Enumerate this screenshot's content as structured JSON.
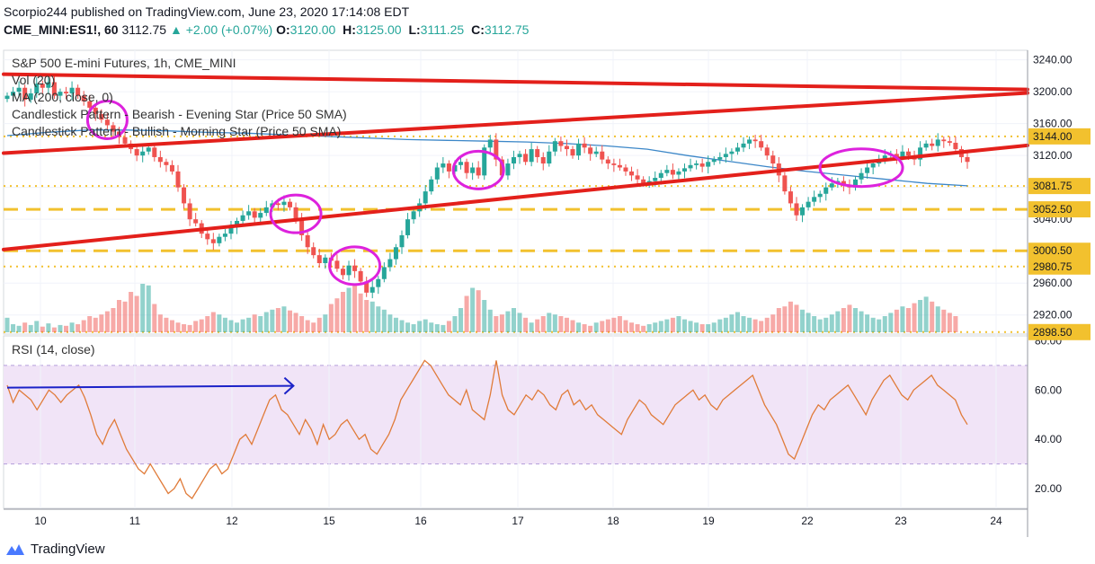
{
  "header": {
    "publisher": "Scorpio244 published on TradingView.com, June 23, 2020 17:14:08 EDT",
    "symbol": "CME_MINI:ES1!, 60",
    "last": "3112.75",
    "change": "▲ +2.00 (+0.07%)",
    "open_label": "O:",
    "open": "3120.00",
    "high_label": "H:",
    "high": "3125.00",
    "low_label": "L:",
    "low": "3111.25",
    "close_label": "C:",
    "close": "3112.75"
  },
  "legend": {
    "title": "S&P 500 E-mini Futures, 1h, CME_MINI",
    "vol": "Vol (20)",
    "ma": "MA (200, close, 0)",
    "pattern1": "Candlestick Pattern - Bearish - Evening Star (Price 50 SMA)",
    "pattern2": "Candlestick Pattern - Bullish - Morning Star (Price 50 SMA)",
    "rsi": "RSI (14, close)"
  },
  "footer": {
    "brand": "TradingView"
  },
  "colors": {
    "up": "#26a69a",
    "down": "#ef5350",
    "trend": "#e3201b",
    "level": "#f2c12e",
    "ma": "#3c87c8",
    "ellipse": "#dd22dd",
    "rsi": "#e07b39",
    "rsi_band": "#f1e4f7",
    "arrow": "#1b22c8"
  },
  "chart_data": [
    {
      "type": "candlestick",
      "title": "S&P 500 E-mini Futures, 1h, CME_MINI",
      "x_ticks": [
        "10",
        "11",
        "12",
        "15",
        "16",
        "17",
        "18",
        "19",
        "22",
        "23",
        "24"
      ],
      "y_ticks": [
        "3240.00",
        "3200.00",
        "3160.00",
        "3120.00",
        "3080.00",
        "3040.00",
        "3000.00",
        "2960.00",
        "2920.00"
      ],
      "ylim": [
        2896,
        3252
      ],
      "price_labels": [
        {
          "value": 3144.0,
          "label": "3144.00",
          "style": "dotted"
        },
        {
          "value": 3081.75,
          "label": "3081.75",
          "style": "dotted"
        },
        {
          "value": 3052.5,
          "label": "3052.50",
          "style": "dashed"
        },
        {
          "value": 3000.5,
          "label": "3000.50",
          "style": "dashed"
        },
        {
          "value": 2980.75,
          "label": "2980.75",
          "style": "dotted"
        },
        {
          "value": 2898.5,
          "label": "2898.50",
          "style": "dotted"
        }
      ],
      "closes": [
        3195,
        3200,
        3205,
        3190,
        3198,
        3210,
        3205,
        3212,
        3195,
        3200,
        3198,
        3205,
        3195,
        3188,
        3180,
        3172,
        3165,
        3158,
        3150,
        3143,
        3135,
        3128,
        3120,
        3125,
        3130,
        3118,
        3112,
        3108,
        3100,
        3080,
        3060,
        3040,
        3035,
        3022,
        3015,
        3010,
        3018,
        3022,
        3030,
        3038,
        3045,
        3050,
        3042,
        3048,
        3055,
        3060,
        3058,
        3062,
        3055,
        3040,
        3020,
        3005,
        2995,
        2985,
        2992,
        2988,
        2978,
        2970,
        2982,
        2975,
        2962,
        2948,
        2955,
        2965,
        2980,
        2990,
        3005,
        3020,
        3040,
        3050,
        3060,
        3075,
        3090,
        3105,
        3110,
        3100,
        3108,
        3112,
        3098,
        3105,
        3095,
        3130,
        3140,
        3115,
        3095,
        3110,
        3118,
        3122,
        3112,
        3128,
        3118,
        3110,
        3125,
        3138,
        3132,
        3128,
        3120,
        3135,
        3130,
        3122,
        3125,
        3115,
        3110,
        3108,
        3105,
        3100,
        3095,
        3090,
        3085,
        3088,
        3092,
        3098,
        3102,
        3096,
        3100,
        3104,
        3108,
        3110,
        3106,
        3112,
        3115,
        3118,
        3122,
        3125,
        3130,
        3135,
        3140,
        3138,
        3130,
        3120,
        3110,
        3095,
        3075,
        3060,
        3045,
        3055,
        3062,
        3068,
        3072,
        3080,
        3085,
        3088,
        3082,
        3080,
        3090,
        3098,
        3105,
        3110,
        3115,
        3120,
        3122,
        3118,
        3125,
        3120,
        3115,
        3130,
        3135,
        3132,
        3140,
        3138,
        3136,
        3128,
        3118,
        3112
      ],
      "ma200": [
        3145,
        3149,
        3152,
        3152,
        3151,
        3149,
        3148,
        3146,
        3144,
        3142,
        3140,
        3139,
        3138,
        3137,
        3135,
        3132,
        3128,
        3120,
        3113,
        3106,
        3100,
        3095,
        3090,
        3085,
        3082
      ],
      "trendlines": [
        {
          "from": [
            0,
            3222
          ],
          "to": [
            163,
            3204
          ]
        },
        {
          "from": [
            0,
            3123
          ],
          "to": [
            163,
            3194
          ]
        },
        {
          "from": [
            0,
            3002
          ],
          "to": [
            163,
            3125
          ]
        }
      ],
      "highlights": [
        17,
        49,
        59,
        80,
        145
      ],
      "volume": [
        18,
        10,
        8,
        12,
        9,
        14,
        7,
        11,
        6,
        9,
        8,
        12,
        10,
        15,
        20,
        18,
        22,
        26,
        30,
        40,
        38,
        50,
        45,
        60,
        58,
        35,
        22,
        18,
        15,
        12,
        10,
        9,
        14,
        16,
        20,
        25,
        22,
        18,
        15,
        12,
        16,
        18,
        22,
        20,
        25,
        28,
        30,
        32,
        27,
        24,
        20,
        15,
        12,
        18,
        22,
        35,
        42,
        50,
        55,
        60,
        48,
        40,
        38,
        32,
        28,
        22,
        18,
        15,
        12,
        10,
        14,
        16,
        12,
        10,
        9,
        14,
        20,
        30,
        45,
        55,
        52,
        40,
        28,
        20,
        22,
        26,
        30,
        24,
        18,
        12,
        16,
        20,
        24,
        22,
        20,
        18,
        15,
        12,
        10,
        8,
        12,
        14,
        16,
        18,
        20,
        15,
        12,
        10,
        8,
        10,
        12,
        14,
        16,
        18,
        20,
        16,
        14,
        12,
        10,
        10,
        12,
        16,
        18,
        22,
        25,
        20,
        18,
        16,
        14,
        18,
        22,
        30,
        32,
        38,
        34,
        28,
        24,
        20,
        16,
        18,
        22,
        26,
        30,
        34,
        30,
        26,
        22,
        18,
        16,
        20,
        24,
        28,
        32,
        30,
        36,
        40,
        44,
        38,
        32,
        28,
        24,
        20
      ]
    },
    {
      "type": "line",
      "title": "RSI (14, close)",
      "y_ticks": [
        "80.00",
        "60.00",
        "40.00",
        "20.00"
      ],
      "ylim": [
        12,
        82
      ],
      "band": [
        30,
        70
      ],
      "values": [
        62,
        55,
        60,
        58,
        56,
        52,
        56,
        60,
        58,
        55,
        58,
        60,
        62,
        57,
        50,
        42,
        38,
        44,
        48,
        42,
        36,
        32,
        28,
        26,
        30,
        26,
        22,
        18,
        20,
        24,
        18,
        16,
        20,
        24,
        28,
        30,
        26,
        28,
        34,
        40,
        42,
        38,
        44,
        50,
        56,
        58,
        52,
        50,
        46,
        42,
        48,
        44,
        38,
        46,
        40,
        42,
        46,
        48,
        44,
        40,
        42,
        36,
        34,
        38,
        42,
        48,
        56,
        60,
        64,
        68,
        72,
        70,
        66,
        62,
        58,
        56,
        54,
        60,
        52,
        50,
        48,
        58,
        72,
        58,
        52,
        50,
        54,
        58,
        56,
        60,
        58,
        54,
        52,
        58,
        60,
        54,
        56,
        52,
        54,
        50,
        48,
        46,
        44,
        42,
        48,
        52,
        56,
        54,
        50,
        48,
        46,
        50,
        54,
        56,
        58,
        60,
        56,
        58,
        54,
        52,
        56,
        58,
        60,
        62,
        64,
        66,
        60,
        54,
        50,
        46,
        40,
        34,
        32,
        38,
        44,
        50,
        54,
        52,
        56,
        58,
        60,
        62,
        58,
        54,
        50,
        56,
        60,
        64,
        66,
        62,
        58,
        56,
        60,
        62,
        64,
        66,
        62,
        60,
        58,
        56,
        50,
        46
      ],
      "arrow": {
        "from": [
          0,
          61
        ],
        "to": [
          48,
          61
        ]
      }
    }
  ]
}
